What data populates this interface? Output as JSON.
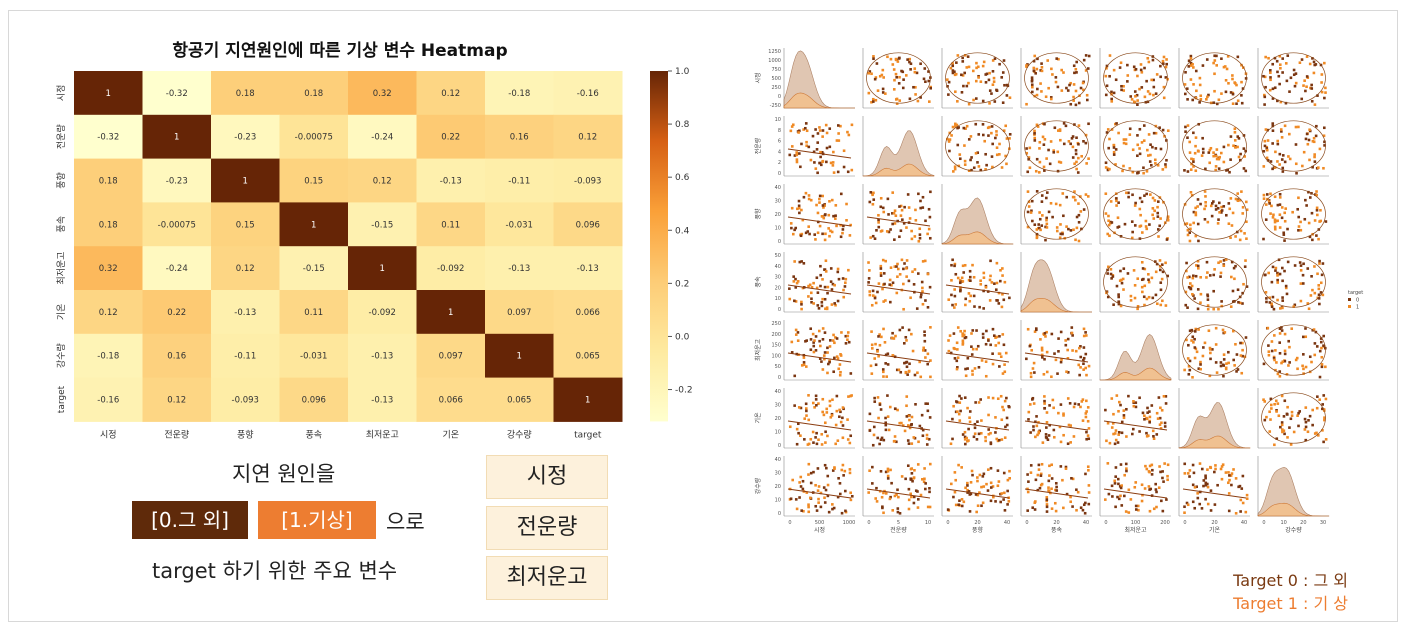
{
  "colors": {
    "dark": "#5f2a0a",
    "orange": "#ed7d31",
    "pale": "#ffffce",
    "box_bg": "#fdf1dc"
  },
  "heatmap": {
    "title": "항공기 지연원인에 따른 기상 변수 Heatmap",
    "labels": [
      "시정",
      "전운량",
      "풍향",
      "풍속",
      "최저운고",
      "기온",
      "강수량",
      "target"
    ],
    "colorbar_ticks": [
      "1.0",
      "0.8",
      "0.6",
      "0.4",
      "0.2",
      "0.0",
      "-0.2"
    ]
  },
  "chart_data": [
    {
      "type": "heatmap",
      "title": "항공기 지연원인에 따른 기상 변수 Heatmap",
      "x": [
        "시정",
        "전운량",
        "풍향",
        "풍속",
        "최저운고",
        "기온",
        "강수량",
        "target"
      ],
      "y": [
        "시정",
        "전운량",
        "풍향",
        "풍속",
        "최저운고",
        "기온",
        "강수량",
        "target"
      ],
      "values": [
        [
          1,
          -0.32,
          0.18,
          0.18,
          0.32,
          0.12,
          -0.18,
          -0.16
        ],
        [
          -0.32,
          1,
          -0.23,
          -0.00075,
          -0.24,
          0.22,
          0.16,
          0.12
        ],
        [
          0.18,
          -0.23,
          1,
          0.15,
          0.12,
          -0.13,
          -0.11,
          -0.093
        ],
        [
          0.18,
          -0.00075,
          0.15,
          1,
          -0.15,
          0.11,
          -0.031,
          0.096
        ],
        [
          0.32,
          -0.24,
          0.12,
          -0.15,
          1,
          -0.092,
          -0.13,
          -0.13
        ],
        [
          0.12,
          0.22,
          -0.13,
          0.11,
          -0.092,
          1,
          0.097,
          0.066
        ],
        [
          -0.18,
          0.16,
          -0.11,
          -0.031,
          -0.13,
          0.097,
          1,
          0.065
        ],
        [
          -0.16,
          0.12,
          -0.093,
          0.096,
          -0.13,
          0.066,
          0.065,
          1
        ]
      ],
      "value_labels": [
        [
          "1",
          "-0.32",
          "0.18",
          "0.18",
          "0.32",
          "0.12",
          "-0.18",
          "-0.16"
        ],
        [
          "-0.32",
          "1",
          "-0.23",
          "-0.00075",
          "-0.24",
          "0.22",
          "0.16",
          "0.12"
        ],
        [
          "0.18",
          "-0.23",
          "1",
          "0.15",
          "0.12",
          "-0.13",
          "-0.11",
          "-0.093"
        ],
        [
          "0.18",
          "-0.00075",
          "0.15",
          "1",
          "-0.15",
          "0.11",
          "-0.031",
          "0.096"
        ],
        [
          "0.32",
          "-0.24",
          "0.12",
          "-0.15",
          "1",
          "-0.092",
          "-0.13",
          "-0.13"
        ],
        [
          "0.12",
          "0.22",
          "-0.13",
          "0.11",
          "-0.092",
          "1",
          "0.097",
          "0.066"
        ],
        [
          "-0.18",
          "0.16",
          "-0.11",
          "-0.031",
          "-0.13",
          "0.097",
          "1",
          "0.065"
        ],
        [
          "-0.16",
          "0.12",
          "-0.093",
          "0.096",
          "-0.13",
          "0.066",
          "0.065",
          "1"
        ]
      ],
      "colorbar_range": [
        -0.32,
        1.0
      ],
      "colormap": "YlOrBr"
    },
    {
      "type": "scatter",
      "subtype": "pairplot",
      "variables": [
        "시정",
        "전운량",
        "풍향",
        "풍속",
        "최저운고",
        "기온",
        "강수량"
      ],
      "hue": "target",
      "hue_levels": [
        "0",
        "1"
      ],
      "hue_colors": [
        "#7a3510",
        "#f08a24"
      ],
      "diagonal": "kde"
    }
  ],
  "pairplot": {
    "labels": [
      "시정",
      "전운량",
      "풍향",
      "풍속",
      "최저운고",
      "기온",
      "강수량"
    ],
    "legend_title": "target",
    "legend_levels": [
      "0",
      "1"
    ],
    "ytick_rows": [
      [
        "1250",
        "1000",
        "750",
        "500",
        "250",
        "0",
        "-250"
      ],
      [
        "10",
        "8",
        "6",
        "4",
        "2",
        "0"
      ],
      [
        "40",
        "30",
        "20",
        "10",
        "0"
      ],
      [
        "50",
        "40",
        "30",
        "20",
        "10",
        "0"
      ],
      [
        "250",
        "200",
        "150",
        "100",
        "50",
        "0"
      ],
      [
        "40",
        "30",
        "20",
        "10",
        "0"
      ],
      [
        "40",
        "30",
        "20",
        "10",
        "0"
      ]
    ],
    "xtick_cols": [
      [
        "0",
        "500",
        "1000"
      ],
      [
        "0",
        "5",
        "10"
      ],
      [
        "0",
        "20",
        "40"
      ],
      [
        "0",
        "20",
        "40"
      ],
      [
        "0",
        "100",
        "200"
      ],
      [
        "0",
        "20",
        "40"
      ],
      [
        "0",
        "10",
        "20",
        "30"
      ]
    ]
  },
  "explain": {
    "line1": "지연 원인을",
    "tag0": "[0.그 외]",
    "tag1": "[1.기상]",
    "tail": "으로",
    "line3": "target 하기 위한 주요 변수"
  },
  "key_vars": [
    "시정",
    "전운량",
    "최저운고"
  ],
  "legend": {
    "line0": "Target 0 : 그 외",
    "line1": "Target 1 : 기 상"
  }
}
